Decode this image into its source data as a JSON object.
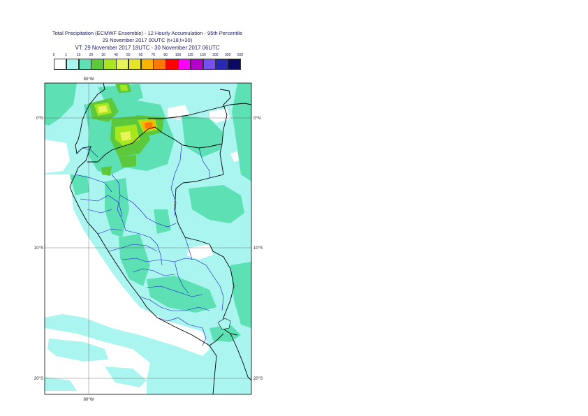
{
  "header": {
    "line1": "Total Precipitation (ECMWF Ensemble) - 12 Hourly Accumulation - 95th Percentile",
    "line2": "29 November 2017 00UTC (t+18,t+30)",
    "line3": "VT: 29 November 2017 18UTC - 30 November 2017 06UTC"
  },
  "legend": {
    "labels": [
      "0",
      "1",
      "10",
      "20",
      "30",
      "40",
      "50",
      "60",
      "70",
      "80",
      "100",
      "125",
      "150",
      "200",
      "300",
      "500"
    ],
    "colors": [
      "#ffffff",
      "#aaf5f0",
      "#5ce0b4",
      "#5cc83c",
      "#a8e61e",
      "#e6f55a",
      "#e6e628",
      "#ffb400",
      "#ff7800",
      "#ff0000",
      "#ff00ff",
      "#b400c8",
      "#7850f0",
      "#2828b4",
      "#0a0a64"
    ]
  },
  "map": {
    "lon_top": "80°W",
    "lon_bottom": "80°W",
    "lat_labels": [
      "0°N",
      "10°S",
      "20°S"
    ]
  }
}
